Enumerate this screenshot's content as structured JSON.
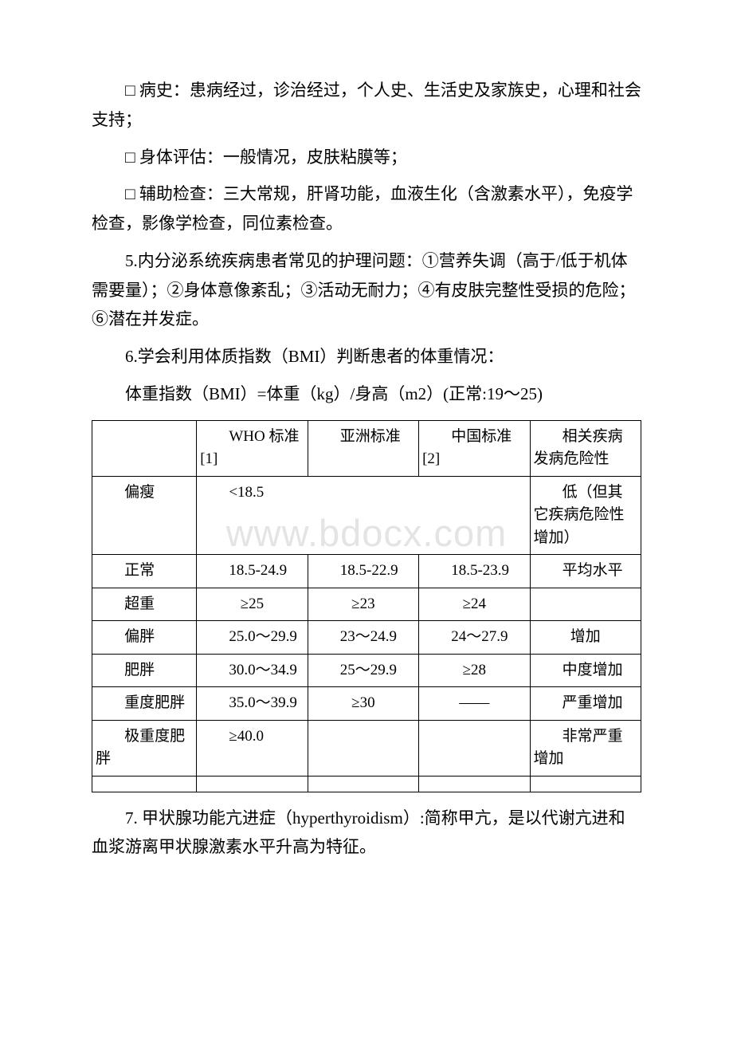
{
  "watermark": "www.bdocx.com",
  "para1": "□ 病史：患病经过，诊治经过，个人史、生活史及家族史，心理和社会支持；",
  "para2": "□ 身体评估：一般情况，皮肤粘膜等；",
  "para3": "□ 辅助检查：三大常规，肝肾功能，血液生化（含激素水平），免疫学检查，影像学检查，同位素检查。",
  "para4": "5.内分泌系统疾病患者常见的护理问题：①营养失调（高于/低于机体需要量）；②身体意像紊乱；③活动无耐力；④有皮肤完整性受损的危险；⑥潜在并发症。",
  "para5": "6.学会利用体质指数（BMI）判断患者的体重情况：",
  "para6": "体重指数（BMI）=体重（kg）/身高（m2）(正常:19～25)",
  "para7": "7. 甲状腺功能亢进症（hyperthyroidism）:简称甲亢，是以代谢亢进和血浆游离甲状腺激素水平升高为特征。",
  "table": {
    "header": [
      "",
      "WHO 标准[1]",
      "亚洲标准",
      "中国标准[2]",
      "相关疾病发病危险性"
    ],
    "rows": [
      {
        "label": "偏瘦",
        "who": "<18.5",
        "asia": "",
        "china": "",
        "risk": "低（但其它疾病危险性增加）",
        "merged": true
      },
      {
        "label": "正常",
        "who": "18.5-24.9",
        "asia": "18.5-22.9",
        "china": "18.5-23.9",
        "risk": "平均水平"
      },
      {
        "label": "超重",
        "who": "≥25",
        "asia": "≥23",
        "china": "≥24",
        "risk": ""
      },
      {
        "label": "偏胖",
        "who": "25.0～29.9",
        "asia": "23～24.9",
        "china": "24～27.9",
        "risk": "增加"
      },
      {
        "label": "肥胖",
        "who": "30.0～34.9",
        "asia": "25～29.9",
        "china": "≥28",
        "risk": "中度增加"
      },
      {
        "label": "重度肥胖",
        "who": "35.0～39.9",
        "asia": "≥30",
        "china": "——",
        "risk": "严重增加"
      },
      {
        "label": "极重度肥胖",
        "who": "≥40.0",
        "asia": "",
        "china": "",
        "risk": "非常严重增加"
      }
    ]
  }
}
